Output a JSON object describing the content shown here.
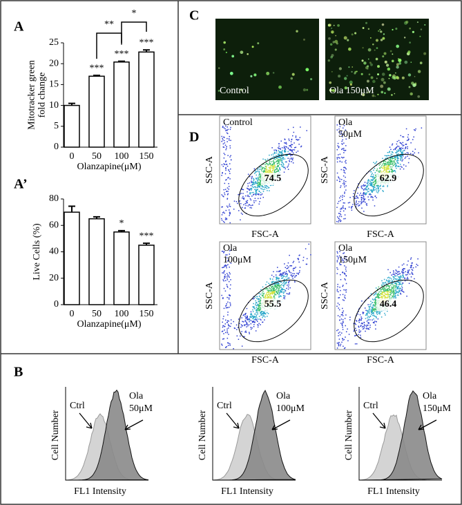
{
  "chart_data": [
    {
      "type": "bar",
      "panel": "A",
      "y_label": [
        "Mitotracker green",
        "fold change"
      ],
      "x_label": "Olanzapine(μM)",
      "categories": [
        "0",
        "50",
        "100",
        "150"
      ],
      "values": [
        10,
        17,
        20.4,
        22.8
      ],
      "errors": [
        0.5,
        0.2,
        0.2,
        0.5
      ],
      "significance": [
        null,
        "***",
        "***",
        "***"
      ],
      "comparisons": [
        {
          "label": "**",
          "between": [
            1,
            2
          ]
        },
        {
          "label": "*",
          "between": [
            2,
            3
          ]
        }
      ],
      "ylim": [
        0,
        25
      ],
      "yticks": [
        0,
        5,
        10,
        15,
        20,
        25
      ]
    },
    {
      "type": "bar",
      "panel": "A’",
      "y_label": [
        "Live Cells (%)"
      ],
      "x_label": "Olanzapine(μM)",
      "categories": [
        "0",
        "50",
        "100",
        "150"
      ],
      "values": [
        70,
        65,
        55,
        45
      ],
      "errors": [
        4.5,
        1.5,
        1,
        1.5
      ],
      "significance": [
        null,
        null,
        "*",
        "***"
      ],
      "comparisons": [],
      "ylim": [
        0,
        80
      ],
      "yticks": [
        0,
        20,
        40,
        60,
        80
      ]
    },
    {
      "type": "flow",
      "panel": "D",
      "x_label": "FSC-A",
      "y_label": "SSC-A",
      "plots": [
        {
          "title": [
            "Control"
          ],
          "gate": 74.5
        },
        {
          "title": [
            "Ola",
            "50μM"
          ],
          "gate": 62.9
        },
        {
          "title": [
            "Ola",
            "100μM"
          ],
          "gate": 55.5
        },
        {
          "title": [
            "Ola",
            "150μM"
          ],
          "gate": 46.4
        }
      ]
    },
    {
      "type": "histogram-overlay",
      "panel": "B",
      "x_label": "FL1 Intensity",
      "y_label": "Cell Number",
      "plots": [
        {
          "control": "Ctrl",
          "treatment": [
            "Ola",
            "50μM"
          ]
        },
        {
          "control": "Ctrl",
          "treatment": [
            "Ola",
            "100μM"
          ]
        },
        {
          "control": "Ctrl",
          "treatment": [
            "Ola",
            "150μM"
          ]
        }
      ]
    }
  ],
  "micrographs": {
    "panel": "C",
    "images": [
      "Control",
      "Ola 150μM"
    ]
  }
}
